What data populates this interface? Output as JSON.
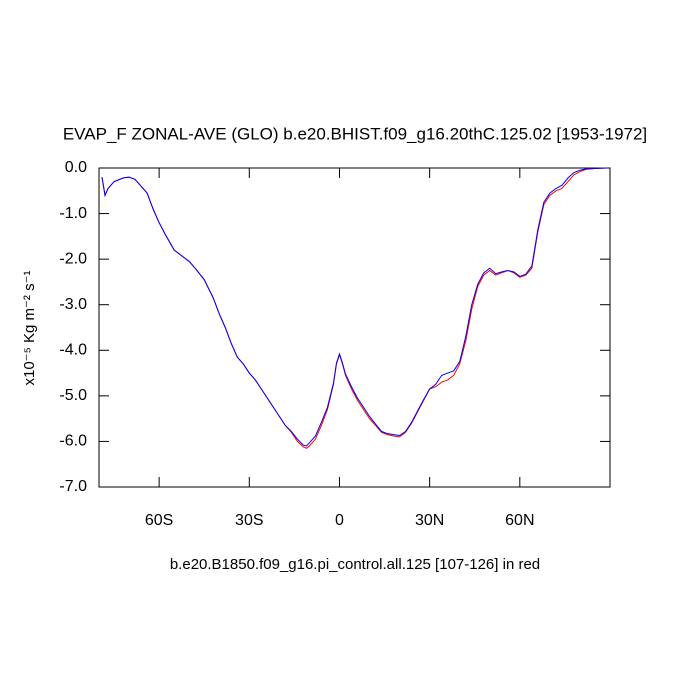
{
  "chart_data": {
    "type": "line",
    "title": "EVAP_F ZONAL-AVE (GLO) b.e20.BHIST.f09_g16.20thC.125.02 [1953-1972]",
    "ylabel": "x10⁻⁵ Kg m⁻² s⁻¹",
    "xlabel": "b.e20.B1850.f09_g16.pi_control.all.125 [107-126] in red",
    "x": [
      -79,
      -78,
      -77,
      -75,
      -72,
      -70,
      -68,
      -66,
      -64,
      -62,
      -60,
      -58,
      -55,
      -52,
      -50,
      -48,
      -45,
      -42,
      -40,
      -38,
      -36,
      -34,
      -32,
      -30,
      -28,
      -26,
      -24,
      -22,
      -20,
      -18,
      -16,
      -14,
      -12,
      -11,
      -10,
      -8,
      -6,
      -4,
      -2,
      -1,
      0,
      1,
      2,
      4,
      6,
      8,
      10,
      12,
      14,
      16,
      18,
      20,
      22,
      24,
      26,
      28,
      30,
      32,
      34,
      36,
      38,
      40,
      42,
      44,
      46,
      48,
      50,
      52,
      54,
      56,
      58,
      60,
      62,
      64,
      66,
      68,
      70,
      72,
      74,
      76,
      78,
      80,
      82,
      85,
      89
    ],
    "series": [
      {
        "color": "#ff0000",
        "values": [
          -0.2,
          -0.6,
          -0.45,
          -0.3,
          -0.22,
          -0.2,
          -0.25,
          -0.4,
          -0.55,
          -0.9,
          -1.2,
          -1.45,
          -1.8,
          -1.95,
          -2.05,
          -2.2,
          -2.45,
          -2.85,
          -3.2,
          -3.5,
          -3.85,
          -4.15,
          -4.3,
          -4.5,
          -4.65,
          -4.85,
          -5.05,
          -5.25,
          -5.45,
          -5.65,
          -5.8,
          -6.0,
          -6.12,
          -6.15,
          -6.1,
          -5.95,
          -5.65,
          -5.3,
          -4.75,
          -4.3,
          -4.1,
          -4.3,
          -4.55,
          -4.85,
          -5.1,
          -5.3,
          -5.5,
          -5.65,
          -5.8,
          -5.85,
          -5.88,
          -5.9,
          -5.8,
          -5.6,
          -5.35,
          -5.1,
          -4.85,
          -4.8,
          -4.7,
          -4.65,
          -4.55,
          -4.3,
          -3.8,
          -3.1,
          -2.6,
          -2.35,
          -2.25,
          -2.35,
          -2.3,
          -2.25,
          -2.3,
          -2.4,
          -2.35,
          -2.2,
          -1.4,
          -0.8,
          -0.6,
          -0.5,
          -0.45,
          -0.3,
          -0.15,
          -0.08,
          -0.03,
          -0.01,
          0
        ]
      },
      {
        "color": "#0000ff",
        "values": [
          -0.2,
          -0.6,
          -0.45,
          -0.3,
          -0.22,
          -0.2,
          -0.25,
          -0.4,
          -0.55,
          -0.9,
          -1.2,
          -1.45,
          -1.8,
          -1.95,
          -2.05,
          -2.2,
          -2.45,
          -2.85,
          -3.2,
          -3.5,
          -3.85,
          -4.15,
          -4.3,
          -4.5,
          -4.65,
          -4.85,
          -5.05,
          -5.25,
          -5.45,
          -5.65,
          -5.78,
          -5.95,
          -6.08,
          -6.1,
          -6.03,
          -5.88,
          -5.58,
          -5.25,
          -4.72,
          -4.28,
          -4.08,
          -4.28,
          -4.52,
          -4.8,
          -5.05,
          -5.25,
          -5.45,
          -5.62,
          -5.78,
          -5.83,
          -5.85,
          -5.87,
          -5.78,
          -5.58,
          -5.33,
          -5.08,
          -4.85,
          -4.75,
          -4.55,
          -4.5,
          -4.45,
          -4.25,
          -3.7,
          -3.0,
          -2.55,
          -2.3,
          -2.2,
          -2.32,
          -2.28,
          -2.25,
          -2.28,
          -2.38,
          -2.33,
          -2.15,
          -1.35,
          -0.75,
          -0.55,
          -0.45,
          -0.38,
          -0.22,
          -0.1,
          -0.05,
          -0.02,
          -0.01,
          0
        ]
      }
    ],
    "xlim": [
      -80,
      90
    ],
    "xticks": [
      {
        "value": -60,
        "label": "60S"
      },
      {
        "value": -30,
        "label": "30S"
      },
      0,
      {
        "value": 30,
        "label": "30N"
      },
      {
        "value": 60,
        "label": "60N"
      }
    ],
    "ylim": [
      -7,
      0
    ],
    "yticks": [
      {
        "value": 0,
        "label": "0.0"
      },
      {
        "value": -1,
        "label": "-1.0"
      },
      {
        "value": -2,
        "label": "-2.0"
      },
      {
        "value": -3,
        "label": "-3.0"
      },
      {
        "value": -4,
        "label": "-4.0"
      },
      {
        "value": -5,
        "label": "-5.0"
      },
      {
        "value": -6,
        "label": "-6.0"
      },
      {
        "value": -7,
        "label": "-7.0"
      }
    ]
  }
}
